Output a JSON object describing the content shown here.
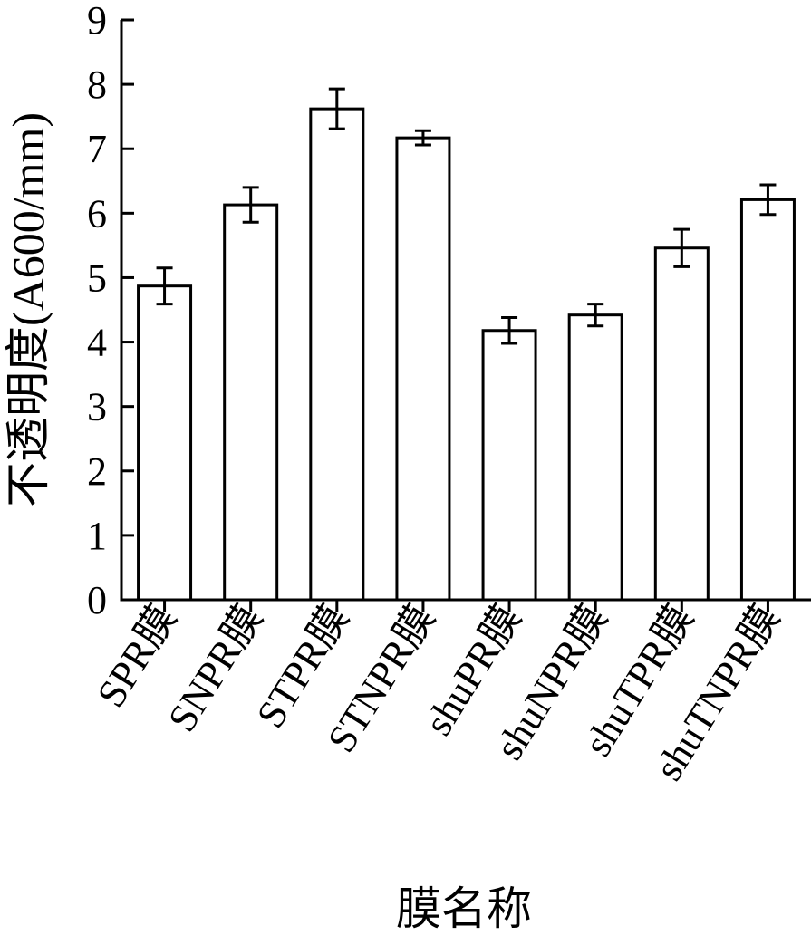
{
  "chart_data": {
    "type": "bar",
    "title": "",
    "xlabel": "膜名称",
    "ylabel": "不透明度(A600/mm)",
    "ylim": [
      0,
      9
    ],
    "yticks": [
      "0",
      "1",
      "2",
      "3",
      "4",
      "5",
      "6",
      "7",
      "8",
      "9"
    ],
    "categories": [
      "SPR膜",
      "SNPR膜",
      "STPR膜",
      "STNPR膜",
      "shuPR膜",
      "shuNPR膜",
      "shuTPR膜",
      "shuTNPR膜"
    ],
    "values": [
      4.87,
      6.13,
      7.62,
      7.17,
      4.18,
      4.42,
      5.46,
      6.21
    ],
    "errors": [
      0.28,
      0.27,
      0.31,
      0.11,
      0.2,
      0.17,
      0.29,
      0.23
    ],
    "grid": false,
    "bar_fill": "#ffffff",
    "bar_stroke": "#000000"
  }
}
